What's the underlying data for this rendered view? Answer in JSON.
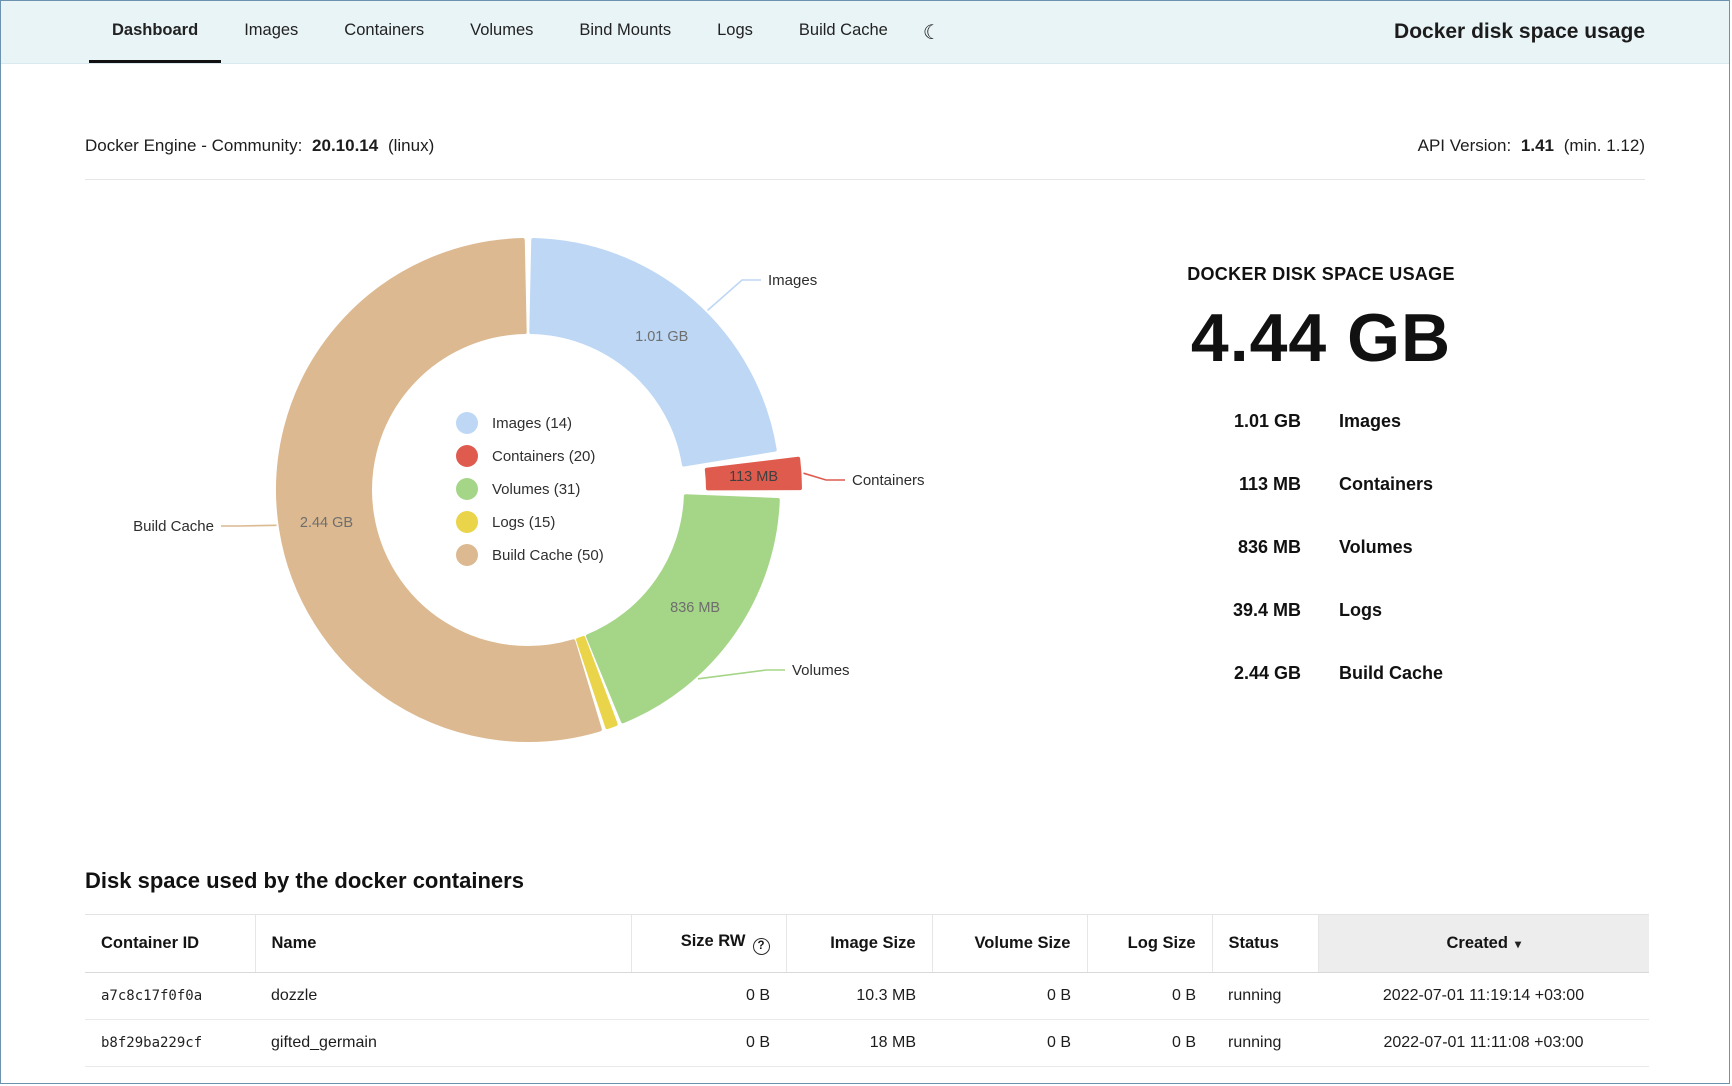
{
  "nav": {
    "tabs": [
      {
        "label": "Dashboard",
        "active": true
      },
      {
        "label": "Images",
        "active": false
      },
      {
        "label": "Containers",
        "active": false
      },
      {
        "label": "Volumes",
        "active": false
      },
      {
        "label": "Bind Mounts",
        "active": false
      },
      {
        "label": "Logs",
        "active": false
      },
      {
        "label": "Build Cache",
        "active": false
      }
    ],
    "app_title": "Docker disk space usage"
  },
  "icons": {
    "moon": "☾",
    "help": "?",
    "sort_caret": "▾"
  },
  "engine": {
    "prefix": "Docker Engine - Community:",
    "version": "20.10.14",
    "suffix": "(linux)"
  },
  "api": {
    "prefix": "API Version:",
    "version": "1.41",
    "suffix": "(min. 1.12)"
  },
  "chart_data": {
    "type": "pie",
    "donut": true,
    "total_label": "4.44 GB",
    "legend_position": "center",
    "series": [
      {
        "name": "Images",
        "count": 14,
        "value_mb": 1010,
        "size_label": "1.01 GB",
        "color": "#bdd7f5",
        "inner_label": true,
        "exploded": false
      },
      {
        "name": "Containers",
        "count": 20,
        "value_mb": 113,
        "size_label": "113 MB",
        "color": "#df5b4e",
        "inner_label": true,
        "exploded": true,
        "inner_color": "#3f3f3f"
      },
      {
        "name": "Volumes",
        "count": 31,
        "value_mb": 836,
        "size_label": "836 MB",
        "color": "#a5d587",
        "inner_label": true,
        "exploded": false
      },
      {
        "name": "Logs",
        "count": 15,
        "value_mb": 39.4,
        "size_label": "39.4 MB",
        "color": "#e9d44a",
        "inner_label": false,
        "exploded": false
      },
      {
        "name": "Build Cache",
        "count": 50,
        "value_mb": 2440,
        "size_label": "2.44 GB",
        "color": "#dcb990",
        "inner_label": true,
        "exploded": false
      }
    ]
  },
  "summary": {
    "heading": "DOCKER DISK SPACE USAGE",
    "total": "4.44 GB",
    "items": [
      {
        "value": "1.01 GB",
        "label": "Images"
      },
      {
        "value": "113 MB",
        "label": "Containers"
      },
      {
        "value": "836 MB",
        "label": "Volumes"
      },
      {
        "value": "39.4 MB",
        "label": "Logs"
      },
      {
        "value": "2.44 GB",
        "label": "Build Cache"
      }
    ]
  },
  "table": {
    "title": "Disk space used by the docker containers",
    "columns": [
      "Container ID",
      "Name",
      "Size RW",
      "Image Size",
      "Volume Size",
      "Log Size",
      "Status",
      "Created"
    ],
    "rows": [
      [
        "a7c8c17f0f0a",
        "dozzle",
        "0 B",
        "10.3 MB",
        "0 B",
        "0 B",
        "running",
        "2022-07-01  11:19:14 +03:00"
      ],
      [
        "b8f29ba229cf",
        "gifted_germain",
        "0 B",
        "18 MB",
        "0 B",
        "0 B",
        "running",
        "2022-07-01  11:11:08 +03:00"
      ]
    ]
  }
}
